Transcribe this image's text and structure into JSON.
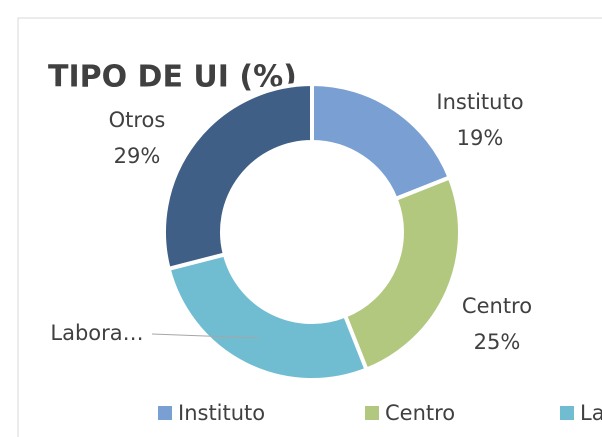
{
  "chart_data": {
    "type": "donut",
    "title": "TIPO DE UI (%)",
    "categories": [
      "Instituto",
      "Centro",
      "Labora…",
      "Otros"
    ],
    "values": [
      19,
      25,
      27,
      29
    ],
    "value_labels": [
      "19%",
      "25%",
      null,
      "29%"
    ],
    "colors": [
      "#7a9fd3",
      "#b2c87e",
      "#70bdd2",
      "#405f86"
    ],
    "legend": "bottom"
  }
}
